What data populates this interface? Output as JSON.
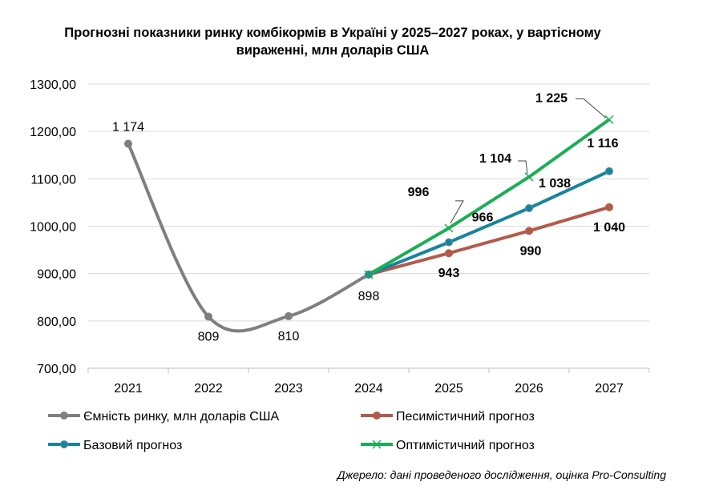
{
  "title_line1": "Прогнозні показники ринку комбікормів в Україні у 2025–2027 роках, у вартісному",
  "title_line2": "вираженні, млн доларів США",
  "source": "Джерело: дані проведеного дослідження, оцінка Pro-Consulting",
  "chart_data": {
    "type": "line",
    "categories": [
      "2021",
      "2022",
      "2023",
      "2024",
      "2025",
      "2026",
      "2027"
    ],
    "ylim": [
      700,
      1300
    ],
    "yticks": [
      "700,00",
      "800,00",
      "900,00",
      "1000,00",
      "1100,00",
      "1200,00",
      "1300,00"
    ],
    "grid": "horizontal",
    "legend_position": "bottom",
    "series": [
      {
        "name": "Ємність ринку, млн доларів США",
        "color": "#7f7f7f",
        "values": [
          1174,
          809,
          810,
          898,
          null,
          null,
          null
        ],
        "labels": [
          "1 174",
          "809",
          "810",
          "898",
          "",
          "",
          ""
        ]
      },
      {
        "name": "Песимістичний прогноз",
        "color": "#b35a4b",
        "values": [
          null,
          null,
          null,
          898,
          943,
          990,
          1040
        ],
        "labels": [
          "",
          "",
          "",
          "",
          "943",
          "990",
          "1 040"
        ]
      },
      {
        "name": "Базовий прогноз",
        "color": "#18849c",
        "values": [
          null,
          null,
          null,
          898,
          966,
          1038,
          1116
        ],
        "labels": [
          "",
          "",
          "",
          "",
          "966",
          "1 038",
          "1 116"
        ]
      },
      {
        "name": "Оптимістичний прогноз",
        "color": "#1aaf54",
        "values": [
          null,
          null,
          null,
          898,
          996,
          1104,
          1225
        ],
        "labels": [
          "",
          "",
          "",
          "",
          "996",
          "1 104",
          "1 225"
        ]
      }
    ]
  }
}
